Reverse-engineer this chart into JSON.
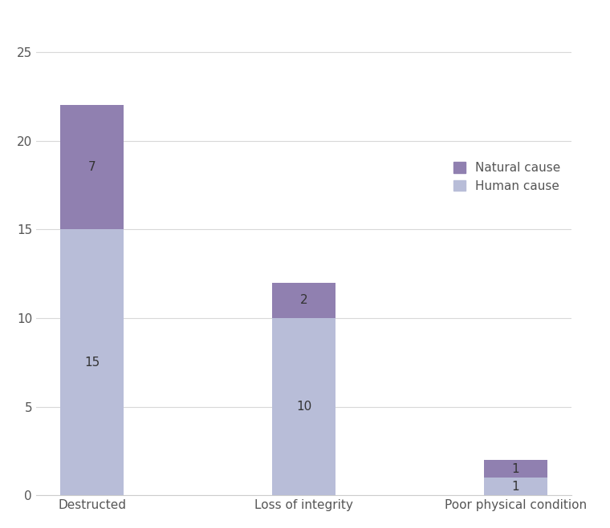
{
  "categories": [
    "Destructed",
    "Loss of integrity",
    "Poor physical condition"
  ],
  "human_cause": [
    15,
    10,
    1
  ],
  "natural_cause": [
    7,
    2,
    1
  ],
  "human_color": "#b8bdd8",
  "natural_color": "#9080b0",
  "bar_width": 0.3,
  "ylim": [
    0,
    27
  ],
  "yticks": [
    0,
    5,
    10,
    15,
    20,
    25
  ],
  "legend_labels": [
    "Natural cause",
    "Human cause"
  ],
  "background_color": "#ffffff",
  "grid_color": "#d8d8d8",
  "tick_fontsize": 11,
  "value_fontsize": 11
}
